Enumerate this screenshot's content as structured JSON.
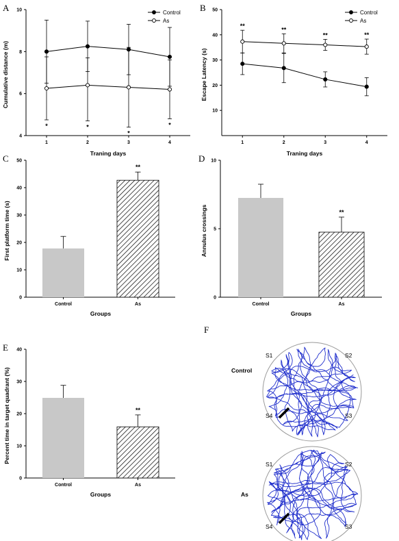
{
  "panels": {
    "A": "A",
    "B": "B",
    "C": "C",
    "D": "D",
    "E": "E",
    "F": "F"
  },
  "chart_data": [
    {
      "type": "line",
      "panel": "A",
      "xlabel": "Traning days",
      "ylabel": "Cumulative distance (m)",
      "x": [
        1,
        2,
        3,
        4
      ],
      "xlim": [
        0.5,
        4.5
      ],
      "ylim": [
        4,
        10
      ],
      "yticks": [
        4,
        6,
        8,
        10
      ],
      "series": [
        {
          "name": "Control",
          "marker": "filled",
          "values": [
            8.0,
            8.25,
            8.1,
            7.75
          ],
          "err_up": [
            1.5,
            1.2,
            1.2,
            1.4
          ],
          "err_down": [
            1.5,
            1.2,
            1.2,
            1.4
          ]
        },
        {
          "name": "As",
          "marker": "open",
          "values": [
            6.25,
            6.4,
            6.3,
            6.2
          ],
          "err_up": [
            1.5,
            1.3,
            1.9,
            1.4
          ],
          "err_down": [
            1.5,
            1.7,
            1.9,
            1.4
          ]
        }
      ],
      "annotations": [
        "*",
        "*",
        "*",
        "*"
      ],
      "legend": "top-right"
    },
    {
      "type": "line",
      "panel": "B",
      "xlabel": "Traning days",
      "ylabel": "Escape Latency (s)",
      "x": [
        1,
        2,
        3,
        4
      ],
      "xlim": [
        0.5,
        4.5
      ],
      "ylim": [
        0,
        50
      ],
      "yticks": [
        10,
        20,
        30,
        40,
        50
      ],
      "series": [
        {
          "name": "Control",
          "marker": "filled",
          "values": [
            28.5,
            26.8,
            22.3,
            19.4
          ],
          "err": [
            4.3,
            5.8,
            3.0,
            3.6
          ]
        },
        {
          "name": "As",
          "marker": "open",
          "values": [
            37.3,
            36.6,
            36.0,
            35.3
          ],
          "err": [
            4.5,
            3.8,
            2.2,
            3.0
          ]
        }
      ],
      "annotations": [
        "**",
        "**",
        "**",
        "**"
      ],
      "legend": "top-right"
    },
    {
      "type": "bar",
      "panel": "C",
      "categories": [
        "Control",
        "As"
      ],
      "values": [
        17.8,
        42.7
      ],
      "err": [
        4.4,
        3.0
      ],
      "xlabel": "Groups",
      "ylabel": "First platform time (s)",
      "ylim": [
        0,
        50
      ],
      "yticks": [
        0,
        10,
        20,
        30,
        40,
        50
      ],
      "annotations": [
        "",
        "**"
      ]
    },
    {
      "type": "bar",
      "panel": "D",
      "categories": [
        "Control",
        "As"
      ],
      "values": [
        7.25,
        4.75
      ],
      "err": [
        1.0,
        1.1
      ],
      "xlabel": "Groups",
      "ylabel": "Annulus crossings",
      "ylim": [
        0,
        10
      ],
      "yticks": [
        0,
        5,
        10
      ],
      "annotations": [
        "",
        "**"
      ]
    },
    {
      "type": "bar",
      "panel": "E",
      "categories": [
        "Control",
        "As"
      ],
      "values": [
        24.9,
        15.9
      ],
      "err": [
        3.9,
        3.7
      ],
      "xlabel": "Groups",
      "ylabel": "Percent time in target quadrant (%)",
      "ylim": [
        0,
        40
      ],
      "yticks": [
        0,
        10,
        20,
        30,
        40
      ],
      "annotations": [
        "",
        "**"
      ]
    }
  ],
  "swim_paths": {
    "groups": [
      "Control",
      "As"
    ],
    "quadrants": [
      "S1",
      "S2",
      "S3",
      "S4"
    ],
    "path_color": "#1f2ecc",
    "platform_color": "#000000"
  },
  "colors": {
    "control_bar": "#c8c8c8",
    "hatch": "#000000"
  }
}
